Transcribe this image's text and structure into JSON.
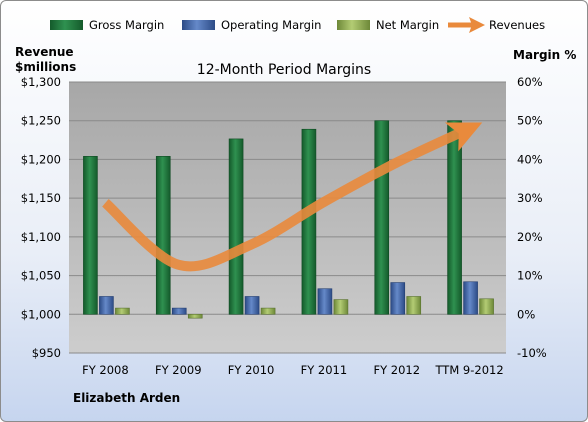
{
  "chart_data": {
    "type": "bar",
    "title": "12-Month Period Margins",
    "left_axis_label": [
      "Revenue",
      "$millions"
    ],
    "right_axis_label": "Margin %",
    "footer_label": "Elizabeth Arden",
    "categories": [
      "FY 2008",
      "FY 2009",
      "FY 2010",
      "FY 2011",
      "FY 2012",
      "TTM 9-2012"
    ],
    "left_axis": {
      "min": 950,
      "max": 1300,
      "step": 50,
      "tick_labels": [
        "$950",
        "$1,000",
        "$1,050",
        "$1,100",
        "$1,150",
        "$1,200",
        "$1,250",
        "$1,300"
      ]
    },
    "right_axis": {
      "min": -10,
      "max": 60,
      "step": 10,
      "tick_labels": [
        "-10%",
        "0%",
        "10%",
        "20%",
        "30%",
        "40%",
        "50%",
        "60%"
      ]
    },
    "grid": true,
    "legend_position": "top",
    "series": [
      {
        "name": "Gross Margin",
        "axis": "right",
        "color": "#1e7a3c",
        "values": [
          40.8,
          40.8,
          45.3,
          47.8,
          50.0,
          50.0
        ]
      },
      {
        "name": "Operating Margin",
        "axis": "right",
        "color": "#3e64a8",
        "values": [
          4.6,
          1.6,
          4.6,
          6.6,
          8.2,
          8.4
        ]
      },
      {
        "name": "Net Margin",
        "axis": "right",
        "color": "#8eab4c",
        "values": [
          1.6,
          -1.0,
          1.6,
          3.8,
          4.6,
          4.0
        ]
      },
      {
        "name": "Revenues",
        "axis": "left",
        "type": "line",
        "color": "#e98a3c",
        "values": [
          1144,
          1064,
          1090,
          1145,
          1196,
          1240
        ]
      }
    ]
  }
}
